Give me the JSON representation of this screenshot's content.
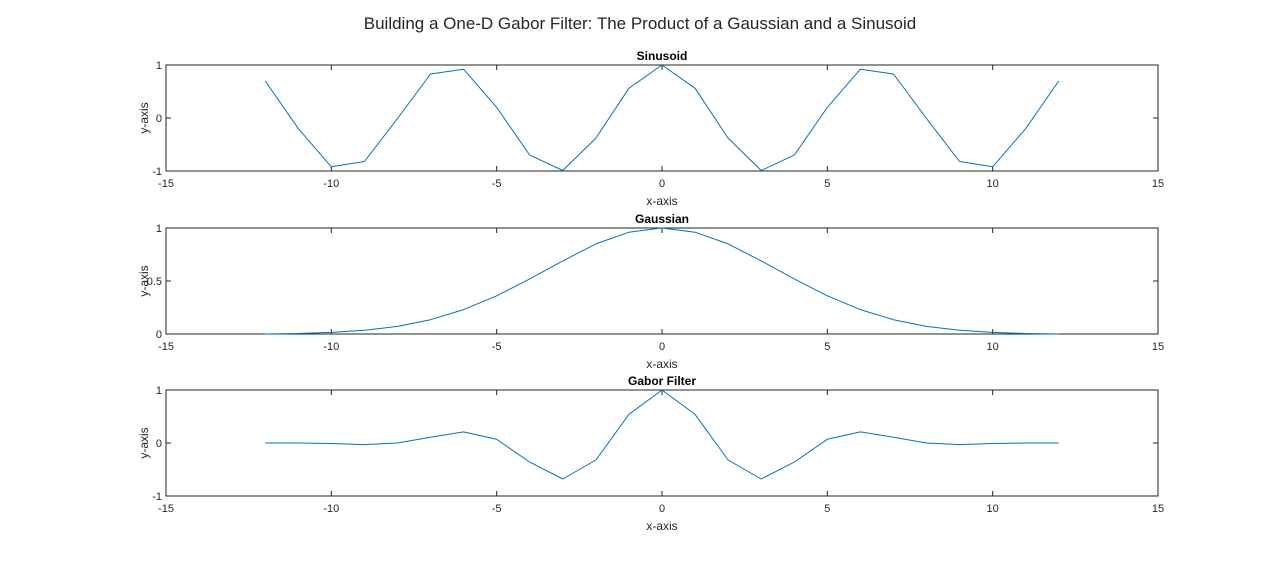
{
  "figure": {
    "title": "Building a One-D Gabor Filter: The Product of a Gaussian and a Sinusoid"
  },
  "colors": {
    "line": "#0072BD",
    "axes": "#262626",
    "background": "#ffffff"
  },
  "chart_data": [
    {
      "type": "line",
      "title": "Sinusoid",
      "xlabel": "x-axis",
      "ylabel": "y-axis",
      "xlim": [
        -15,
        15
      ],
      "ylim": [
        -1,
        1
      ],
      "xticks": [
        -15,
        -10,
        -5,
        0,
        5,
        10,
        15
      ],
      "yticks": [
        -1,
        0,
        1
      ],
      "xtick_labels": [
        "-15",
        "-10",
        "-5",
        "0",
        "5",
        "10",
        "15"
      ],
      "ytick_labels": [
        "-1",
        "0",
        "1"
      ],
      "grid": false,
      "x": [
        -12,
        -11,
        -10,
        -9,
        -8,
        -7,
        -6,
        -5,
        -4,
        -3,
        -2,
        -1,
        0,
        1,
        2,
        3,
        4,
        5,
        6,
        7,
        8,
        9,
        10,
        11,
        12
      ],
      "series": [
        {
          "values": [
            0.7,
            -0.2,
            -0.92,
            -0.82,
            -0.01,
            0.83,
            0.92,
            0.2,
            -0.7,
            -0.99,
            -0.38,
            0.56,
            1.0,
            0.56,
            -0.38,
            -0.99,
            -0.7,
            0.2,
            0.92,
            0.83,
            -0.01,
            -0.82,
            -0.92,
            -0.2,
            0.7
          ]
        }
      ]
    },
    {
      "type": "line",
      "title": "Gaussian",
      "xlabel": "x-axis",
      "ylabel": "y-axis",
      "xlim": [
        -15,
        15
      ],
      "ylim": [
        0,
        1
      ],
      "xticks": [
        -15,
        -10,
        -5,
        0,
        5,
        10,
        15
      ],
      "yticks": [
        0,
        0.5,
        1
      ],
      "xtick_labels": [
        "-15",
        "-10",
        "-5",
        "0",
        "5",
        "10",
        "15"
      ],
      "ytick_labels": [
        "0",
        "0.5",
        "1"
      ],
      "grid": false,
      "x": [
        -12,
        -11,
        -10,
        -9,
        -8,
        -7,
        -6,
        -5,
        -4,
        -3,
        -2,
        -1,
        0,
        1,
        2,
        3,
        4,
        5,
        6,
        7,
        8,
        9,
        10,
        11,
        12
      ],
      "series": [
        {
          "values": [
            0.0,
            0.005,
            0.015,
            0.035,
            0.072,
            0.135,
            0.23,
            0.36,
            0.52,
            0.69,
            0.85,
            0.96,
            1.0,
            0.96,
            0.85,
            0.69,
            0.52,
            0.36,
            0.23,
            0.135,
            0.072,
            0.035,
            0.015,
            0.005,
            0.0
          ]
        }
      ]
    },
    {
      "type": "line",
      "title": "Gabor Filter",
      "xlabel": "x-axis",
      "ylabel": "y-axis",
      "xlim": [
        -15,
        15
      ],
      "ylim": [
        -1,
        1
      ],
      "xticks": [
        -15,
        -10,
        -5,
        0,
        5,
        10,
        15
      ],
      "yticks": [
        -1,
        0,
        1
      ],
      "xtick_labels": [
        "-15",
        "-10",
        "-5",
        "0",
        "5",
        "10",
        "15"
      ],
      "ytick_labels": [
        "-1",
        "0",
        "1"
      ],
      "grid": false,
      "x": [
        -12,
        -11,
        -10,
        -9,
        -8,
        -7,
        -6,
        -5,
        -4,
        -3,
        -2,
        -1,
        0,
        1,
        2,
        3,
        4,
        5,
        6,
        7,
        8,
        9,
        10,
        11,
        12
      ],
      "series": [
        {
          "values": [
            0.0,
            0.0,
            -0.01,
            -0.03,
            0.0,
            0.11,
            0.21,
            0.07,
            -0.36,
            -0.68,
            -0.32,
            0.54,
            1.0,
            0.54,
            -0.32,
            -0.68,
            -0.36,
            0.07,
            0.21,
            0.11,
            0.0,
            -0.03,
            -0.01,
            0.0,
            0.0
          ]
        }
      ]
    }
  ]
}
